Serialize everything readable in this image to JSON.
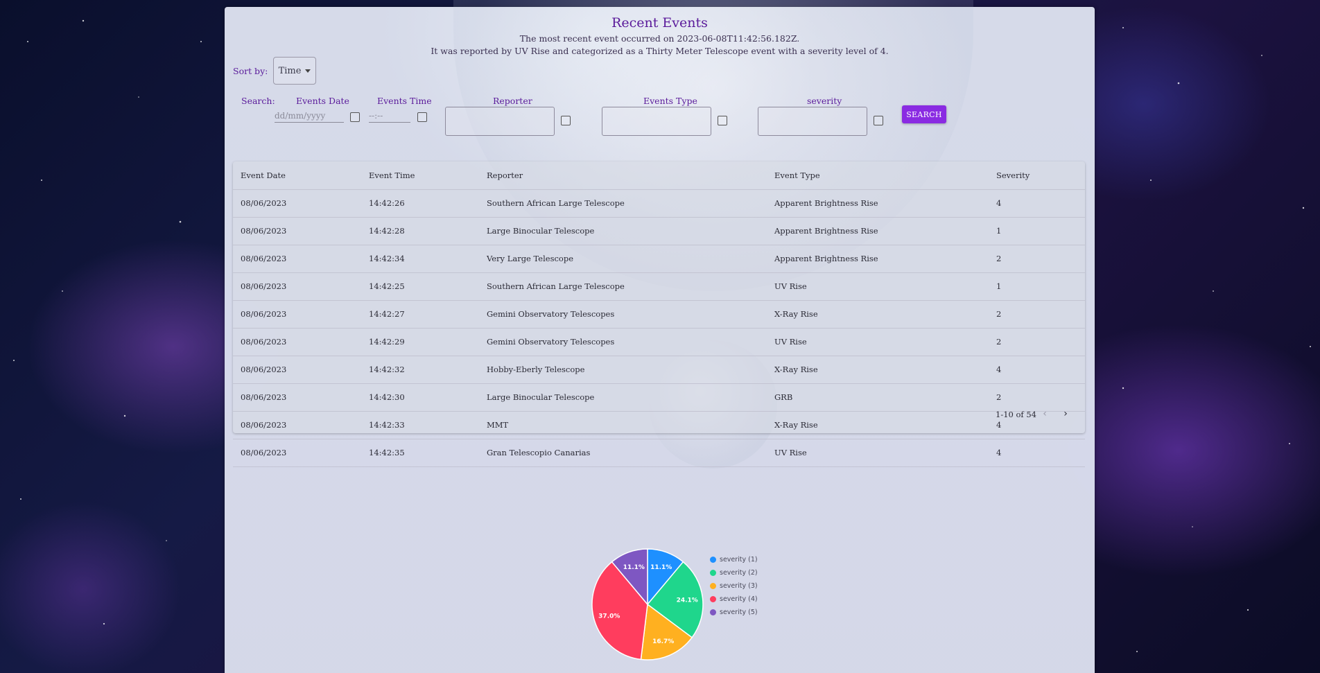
{
  "header": {
    "title": "Recent Events",
    "line1": "The most recent event occurred on 2023-06-08T11:42:56.182Z.",
    "line2": "It was reported by UV Rise and categorized as a Thirty Meter Telescope event with a severity level of 4."
  },
  "sort": {
    "label": "Sort by:",
    "value": "Time"
  },
  "search": {
    "label": "Search:",
    "date_label": "Events Date",
    "date_placeholder": "dd/mm/yyyy",
    "time_label": "Events Time",
    "time_placeholder": "--:--",
    "reporter_label": "Reporter",
    "type_label": "Events Type",
    "severity_label": "severity",
    "button": "SEARCH"
  },
  "table": {
    "columns": [
      "Event Date",
      "Event Time",
      "Reporter",
      "Event Type",
      "Severity"
    ],
    "rows": [
      [
        "08/06/2023",
        "14:42:26",
        "Southern African Large Telescope",
        "Apparent Brightness Rise",
        "4"
      ],
      [
        "08/06/2023",
        "14:42:28",
        "Large Binocular Telescope",
        "Apparent Brightness Rise",
        "1"
      ],
      [
        "08/06/2023",
        "14:42:34",
        "Very Large Telescope",
        "Apparent Brightness Rise",
        "2"
      ],
      [
        "08/06/2023",
        "14:42:25",
        "Southern African Large Telescope",
        "UV Rise",
        "1"
      ],
      [
        "08/06/2023",
        "14:42:27",
        "Gemini Observatory Telescopes",
        "X-Ray Rise",
        "2"
      ],
      [
        "08/06/2023",
        "14:42:29",
        "Gemini Observatory Telescopes",
        "UV Rise",
        "2"
      ],
      [
        "08/06/2023",
        "14:42:32",
        "Hobby-Eberly Telescope",
        "X-Ray Rise",
        "4"
      ],
      [
        "08/06/2023",
        "14:42:30",
        "Large Binocular Telescope",
        "GRB",
        "2"
      ],
      [
        "08/06/2023",
        "14:42:33",
        "MMT",
        "X-Ray Rise",
        "4"
      ],
      [
        "08/06/2023",
        "14:42:35",
        "Gran Telescopio Canarias",
        "UV Rise",
        "4"
      ]
    ],
    "pagination": "1-10 of 54"
  },
  "icons": {
    "prev": "chevron-left-icon",
    "next": "chevron-right-icon"
  },
  "chart_data": {
    "type": "pie",
    "categories": [
      "severity (1)",
      "severity (2)",
      "severity (3)",
      "severity (4)",
      "severity (5)"
    ],
    "values": [
      11.1,
      24.1,
      16.7,
      37.0,
      11.1
    ],
    "labels": [
      "11.1%",
      "24.1%",
      "16.7%",
      "37.0%",
      "11.1%"
    ],
    "colors": [
      "#1e90ff",
      "#1fd68c",
      "#ffb020",
      "#ff3d5e",
      "#7e57c2"
    ],
    "legend": "right"
  }
}
